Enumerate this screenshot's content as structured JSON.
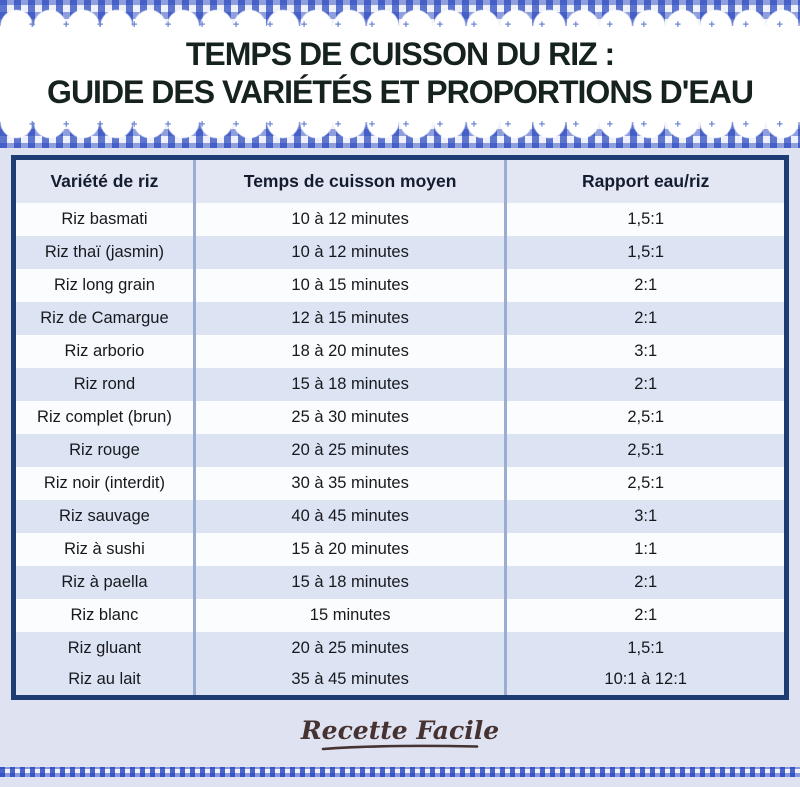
{
  "title": {
    "line1": "TEMPS DE CUISSON DU RIZ :",
    "line2": "GUIDE DES VARIÉTÉS ET PROPORTIONS D'EAU"
  },
  "decor": {
    "cross_row": "+ + + + + + + + + + + + + + + + + + + + + + +"
  },
  "chart_data": {
    "type": "table",
    "title": "Temps de cuisson du riz : guide des variétés et proportions d'eau",
    "columns": [
      "Variété de riz",
      "Temps de cuisson moyen",
      "Rapport eau/riz"
    ],
    "rows": [
      {
        "cells": [
          "Riz basmati",
          "10 à 12 minutes",
          "1,5:1"
        ]
      },
      {
        "cells": [
          "Riz thaï (jasmin)",
          "10 à 12 minutes",
          "1,5:1"
        ]
      },
      {
        "cells": [
          "Riz long grain",
          "10 à 15 minutes",
          "2:1"
        ]
      },
      {
        "cells": [
          "Riz de Camargue",
          "12 à 15 minutes",
          "2:1"
        ]
      },
      {
        "cells": [
          "Riz arborio",
          "18 à 20 minutes",
          "3:1"
        ]
      },
      {
        "cells": [
          "Riz rond",
          "15 à 18 minutes",
          "2:1"
        ]
      },
      {
        "cells": [
          "Riz complet (brun)",
          "25 à 30 minutes",
          "2,5:1"
        ]
      },
      {
        "cells": [
          "Riz rouge",
          "20 à 25 minutes",
          "2,5:1"
        ]
      },
      {
        "cells": [
          "Riz noir (interdit)",
          "30 à 35 minutes",
          "2,5:1"
        ]
      },
      {
        "cells": [
          "Riz sauvage",
          "40 à 45 minutes",
          "3:1"
        ]
      },
      {
        "cells": [
          "Riz à sushi",
          "15 à 20 minutes",
          "1:1"
        ]
      },
      {
        "cells": [
          "Riz à paella",
          "15 à 18 minutes",
          "2:1"
        ]
      },
      {
        "cells": [
          "Riz blanc",
          "15 minutes",
          "2:1"
        ]
      },
      {
        "cells": [
          "Riz gluant",
          "20 à 25 minutes",
          "1,5:1"
        ]
      },
      {
        "cells": [
          "Riz au lait",
          "35 à 45 minutes",
          "10:1 à 12:1"
        ]
      }
    ]
  },
  "footer": {
    "brand": "Recette Facile"
  },
  "colors": {
    "page_background": "#dfe3f1",
    "gingham_blue_dark": "#2847b2",
    "gingham_blue_mid": "#5c77d4",
    "table_border_navy": "#1e3c74",
    "header_row_bg": "#e3e7f3",
    "shaded_row_bg": "#dce4f3",
    "column_divider": "#9cadd2",
    "title_text": "#16221e",
    "brand_text": "#453231"
  }
}
